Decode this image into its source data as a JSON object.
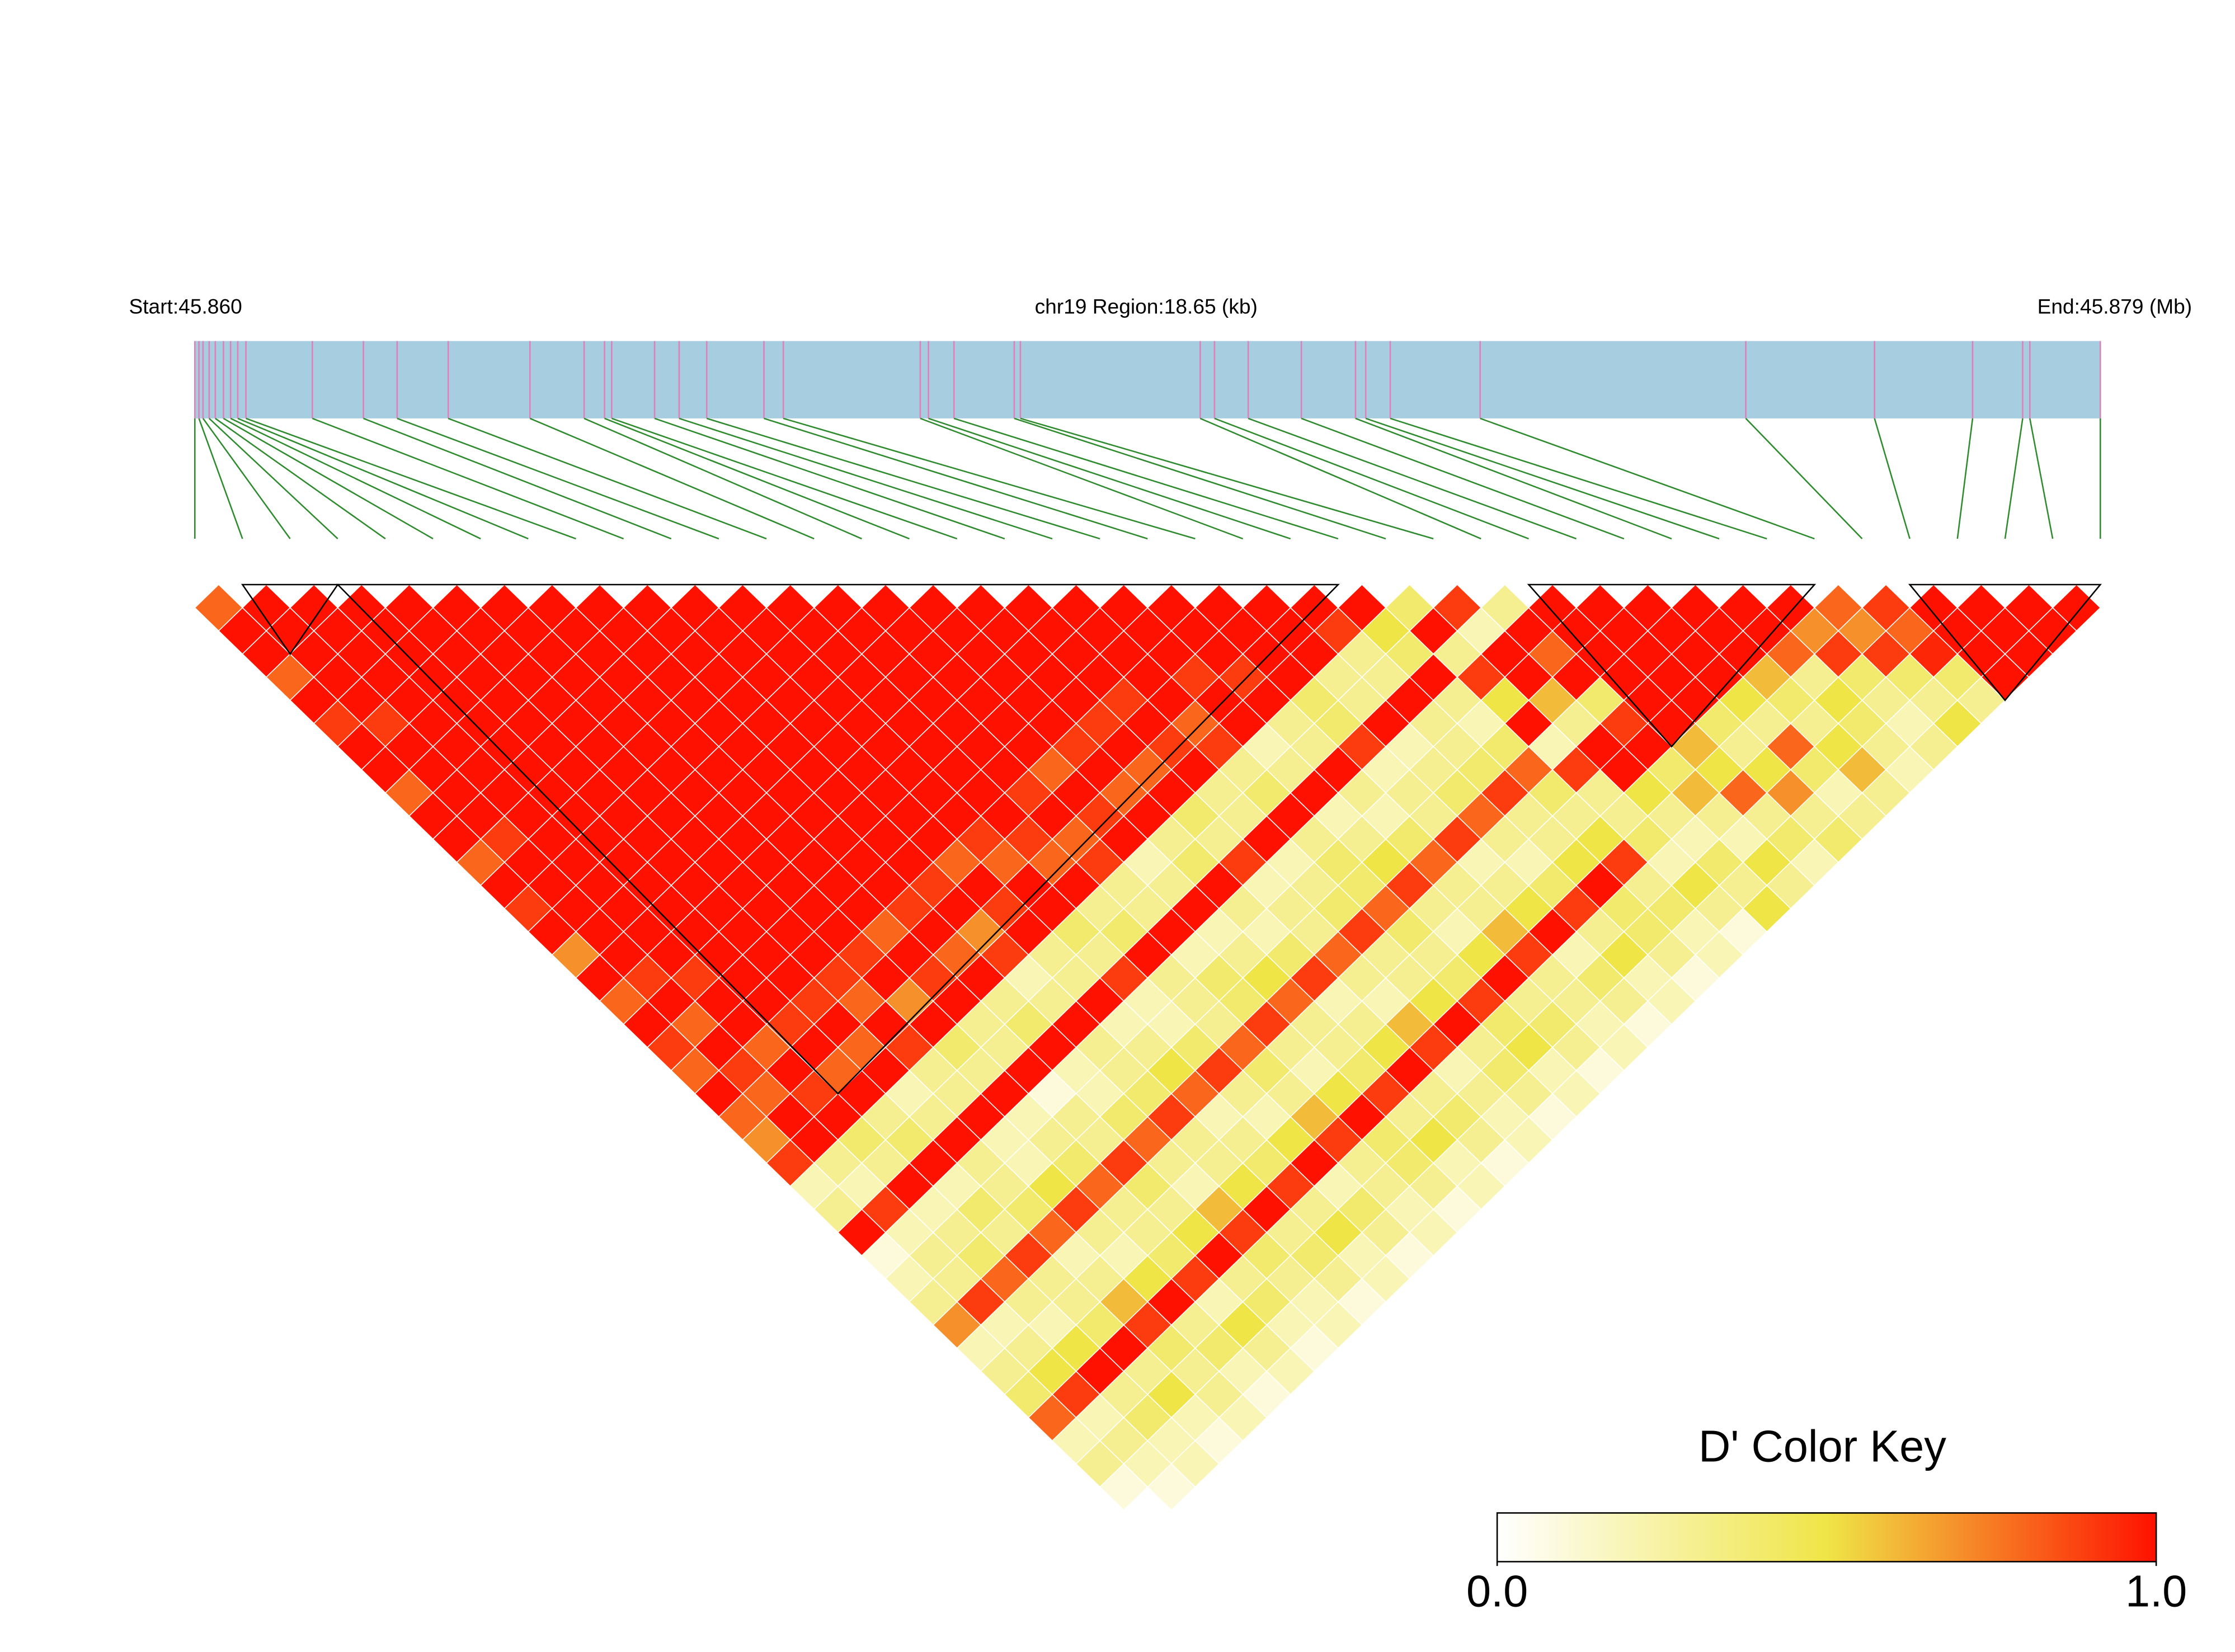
{
  "chart_data": {
    "type": "ld_heatmap",
    "start_label": "Start:45.860",
    "region_label": "chr19 Region:18.65 (kb)",
    "end_label": "End:45.879 (Mb)",
    "xlim": [
      0,
      18.65
    ],
    "positions": [
      0.0,
      0.04,
      0.08,
      0.14,
      0.2,
      0.28,
      0.35,
      0.42,
      0.5,
      1.15,
      1.65,
      1.98,
      2.48,
      3.28,
      3.81,
      4.01,
      4.08,
      4.5,
      4.74,
      5.01,
      5.57,
      5.76,
      7.1,
      7.18,
      7.43,
      8.02,
      8.08,
      9.84,
      9.98,
      10.31,
      10.83,
      11.36,
      11.46,
      11.7,
      12.58,
      15.18,
      16.44,
      17.4,
      17.89,
      17.96,
      18.65
    ],
    "dprime": [
      [
        0.8,
        1,
        1,
        0.8,
        1,
        0.9,
        1,
        1,
        0.8,
        1,
        1,
        0.8,
        1,
        0.9,
        1,
        0.7,
        1,
        0.8,
        1,
        0.9,
        0.8,
        1,
        0.8,
        0.7,
        0.9,
        0.2,
        0.3,
        1,
        0.1,
        0.2,
        0.3,
        0.7,
        0.2,
        0.3,
        0.4,
        0.8,
        0.2,
        0.3,
        0.1,
        0
      ],
      [
        1,
        1,
        1,
        1,
        1,
        0.9,
        1,
        1,
        1,
        1,
        0.9,
        1,
        1,
        1,
        1,
        1,
        0.9,
        1,
        0.8,
        1,
        0.9,
        0.8,
        1,
        1,
        0.3,
        0.2,
        0.9,
        0.2,
        0.3,
        0.3,
        0.9,
        0.2,
        0.3,
        0.5,
        0.9,
        0.2,
        0.3,
        0.2,
        0.1
      ],
      [
        1,
        1,
        1,
        1,
        1,
        1,
        1,
        1,
        1,
        1,
        1,
        1,
        1,
        1,
        1,
        1,
        0.9,
        1,
        1,
        0.8,
        1,
        0.9,
        1,
        0.4,
        0.3,
        1,
        0.2,
        0.3,
        0.4,
        0.8,
        0.3,
        0.2,
        0.5,
        1,
        0.3,
        0.4,
        0.2,
        0.2
      ],
      [
        1,
        1,
        1,
        1,
        1,
        1,
        1,
        1,
        1,
        1,
        1,
        1,
        1,
        1,
        1,
        1,
        1,
        1,
        0.9,
        1,
        0.8,
        1,
        0.3,
        0.4,
        1,
        0.2,
        0.4,
        0.3,
        0.9,
        0.3,
        0.3,
        0.4,
        1,
        0.3,
        0.5,
        0.2,
        0.1
      ],
      [
        1,
        1,
        1,
        1,
        1,
        1,
        1,
        1,
        1,
        1,
        1,
        1,
        1,
        1,
        1,
        1,
        1,
        0.9,
        1,
        0.8,
        1,
        0.2,
        0.3,
        1,
        0.3,
        0.3,
        0.4,
        0.8,
        0.2,
        0.3,
        0.6,
        0.9,
        0.4,
        0.3,
        0.3,
        0.2
      ],
      [
        1,
        1,
        1,
        1,
        1,
        1,
        1,
        1,
        1,
        1,
        1,
        1,
        1,
        1,
        1,
        1,
        0.9,
        0.8,
        1,
        0.9,
        0.3,
        0.3,
        1,
        0.2,
        0.2,
        0.5,
        0.9,
        0.3,
        0.2,
        0.5,
        1,
        0.3,
        0.4,
        0.2,
        0.1
      ],
      [
        1,
        1,
        1,
        1,
        1,
        1,
        1,
        1,
        1,
        1,
        1,
        1,
        1,
        1,
        1,
        0.9,
        1,
        0.7,
        1,
        0.4,
        0.3,
        1,
        0.2,
        0.3,
        0.4,
        0.8,
        0.3,
        0.3,
        0.4,
        0.9,
        0.2,
        0.5,
        0.3,
        0.2
      ],
      [
        1,
        1,
        1,
        1,
        1,
        1,
        1,
        1,
        1,
        1,
        1,
        1,
        1,
        1,
        0.8,
        1,
        0.9,
        1,
        0.3,
        0.3,
        1,
        0.1,
        0.3,
        0.3,
        0.9,
        0.4,
        0.3,
        0.5,
        1,
        0.3,
        0.4,
        0.2,
        0.1
      ],
      [
        1,
        1,
        1,
        1,
        1,
        1,
        1,
        1,
        1,
        1,
        1,
        1,
        1,
        0.9,
        1,
        0.8,
        1,
        0.3,
        0.4,
        1,
        0.2,
        0.2,
        0.4,
        0.8,
        0.3,
        0.2,
        0.6,
        0.9,
        0.4,
        0.3,
        0.2,
        0.2
      ],
      [
        1,
        1,
        1,
        1,
        1,
        1,
        1,
        1,
        1,
        1,
        1,
        1,
        0.9,
        1,
        0.7,
        0.9,
        0.2,
        0.3,
        1,
        0.3,
        0.3,
        0.4,
        0.9,
        0.3,
        0.3,
        0.5,
        1,
        0.3,
        0.4,
        0.3,
        0.1
      ],
      [
        1,
        1,
        1,
        1,
        1,
        1,
        1,
        1,
        1,
        1,
        1,
        0.8,
        1,
        0.9,
        1,
        0.3,
        0.3,
        1,
        0.2,
        0.3,
        0.5,
        0.8,
        0.2,
        0.3,
        0.4,
        0.9,
        0.3,
        0.5,
        0.2,
        0.2
      ],
      [
        1,
        1,
        1,
        1,
        1,
        1,
        1,
        1,
        1,
        1,
        0.9,
        0.8,
        1,
        1,
        0.4,
        0.3,
        0.9,
        0.2,
        0.2,
        0.4,
        0.9,
        0.3,
        0.2,
        0.5,
        1,
        0.2,
        0.4,
        0.3,
        0.1
      ],
      [
        1,
        1,
        1,
        1,
        1,
        1,
        1,
        1,
        1,
        1,
        0.9,
        0.8,
        1,
        0.3,
        0.4,
        1,
        0.3,
        0.3,
        0.3,
        0.8,
        0.4,
        0.3,
        0.6,
        0.9,
        0.3,
        0.3,
        0.2,
        0.2
      ],
      [
        1,
        1,
        1,
        1,
        1,
        1,
        1,
        1,
        0.9,
        1,
        0.8,
        0.9,
        0.3,
        0.3,
        1,
        0.2,
        0.4,
        0.4,
        0.9,
        0.3,
        0.2,
        0.5,
        1,
        0.4,
        0.4,
        0.3,
        0.1
      ],
      [
        1,
        1,
        1,
        1,
        1,
        1,
        1,
        0.8,
        1,
        0.9,
        1,
        0.2,
        0.3,
        1,
        0.2,
        0.3,
        0.5,
        0.8,
        0.3,
        0.3,
        0.4,
        0.9,
        0.3,
        0.5,
        0.2,
        0.2
      ],
      [
        1,
        1,
        1,
        1,
        1,
        1,
        0.9,
        1,
        0.8,
        1,
        0.3,
        0.4,
        1,
        0.3,
        0.2,
        0.4,
        0.9,
        0.2,
        0.3,
        0.5,
        1,
        0.3,
        0.4,
        0.3,
        0.1
      ],
      [
        1,
        1,
        1,
        1,
        1,
        0.9,
        1,
        0.8,
        1,
        0.4,
        0.3,
        0.9,
        0.2,
        0.3,
        0.3,
        0.8,
        0.3,
        0.2,
        0.6,
        0.9,
        0.2,
        0.3,
        0.2,
        0.2
      ],
      [
        1,
        1,
        1,
        1,
        0.9,
        1,
        0.9,
        1,
        0.3,
        0.3,
        1,
        0.2,
        0.3,
        0.4,
        0.9,
        0.3,
        0.3,
        0.5,
        1,
        0.3,
        0.4,
        0.3,
        0.1
      ],
      [
        1,
        1,
        1,
        1,
        1,
        0.8,
        0.9,
        0.3,
        0.4,
        1,
        0.3,
        0.4,
        0.4,
        0.8,
        0.4,
        0.3,
        0.4,
        0.9,
        0.4,
        0.5,
        0.2,
        0.2
      ],
      [
        1,
        1,
        1,
        0.9,
        1,
        1,
        0.2,
        0.3,
        1,
        0.2,
        0.3,
        0.5,
        0.9,
        0.3,
        0.2,
        0.5,
        1,
        0.3,
        0.4,
        0.3,
        0.1
      ],
      [
        1,
        1,
        1,
        0.9,
        1,
        0.3,
        0.3,
        1,
        0.3,
        0.2,
        0.4,
        0.8,
        0.3,
        0.3,
        0.6,
        0.9,
        0.3,
        0.3,
        0.2,
        0.2
      ],
      [
        1,
        1,
        1,
        1,
        0.4,
        0.4,
        0.9,
        0.2,
        0.3,
        0.3,
        0.9,
        0.2,
        0.3,
        0.5,
        1,
        0.2,
        0.4,
        0.3,
        0.1
      ],
      [
        1,
        1,
        1,
        0.3,
        0.3,
        1,
        0.2,
        0.3,
        0.4,
        0.8,
        0.3,
        0.2,
        0.4,
        0.9,
        0.3,
        0.5,
        0.2,
        0.2
      ],
      [
        1,
        0.9,
        0.3,
        0.3,
        1,
        0.3,
        0.3,
        0.4,
        0.9,
        0.3,
        0.3,
        0.5,
        1,
        0.4,
        0.4,
        0.3,
        0.1
      ],
      [
        1,
        0.5,
        0.4,
        1,
        0.3,
        0.2,
        0.4,
        0.8,
        0.4,
        0.3,
        0.5,
        0.9,
        0.3,
        0.4,
        0.2,
        0.2
      ],
      [
        0.4,
        1,
        0.3,
        0.9,
        0.5,
        1,
        0.2,
        0.9,
        0.3,
        0.3,
        0.4,
        0.2,
        0.5,
        0.3,
        0.1
      ],
      [
        0.9,
        0.2,
        1,
        1,
        0.6,
        0.3,
        1,
        1,
        0.5,
        0.3,
        0.2,
        0.4,
        0.3,
        0.5
      ],
      [
        0.3,
        1,
        0.8,
        1,
        0.4,
        0.9,
        1,
        0.4,
        0.6,
        0.3,
        0.2,
        0.5,
        0.3
      ],
      [
        1,
        1,
        1,
        1,
        1,
        1,
        0.6,
        0.5,
        0.8,
        0.3,
        0.4,
        0.2
      ],
      [
        1,
        1,
        1,
        1,
        1,
        0.4,
        0.3,
        0.5,
        0.7,
        0.3,
        0.4
      ],
      [
        1,
        1,
        1,
        1,
        0.5,
        0.3,
        0.8,
        0.4,
        0.2,
        0.3
      ],
      [
        1,
        1,
        1,
        0.6,
        0.4,
        0.3,
        0.5,
        0.6,
        0.3
      ],
      [
        1,
        1,
        0.8,
        0.3,
        0.5,
        0.4,
        0.3,
        0.2
      ],
      [
        1,
        0.7,
        0.9,
        0.4,
        0.3,
        0.2,
        0.3
      ],
      [
        0.8,
        0.7,
        0.9,
        0.4,
        0.3,
        0.5
      ],
      [
        0.9,
        0.8,
        0.95,
        0.4,
        0.3
      ],
      [
        1,
        1,
        1,
        1
      ],
      [
        1,
        1,
        1
      ],
      [
        1,
        1
      ],
      [
        1
      ]
    ],
    "blocks": [
      [
        1,
        3
      ],
      [
        3,
        24
      ],
      [
        28,
        34
      ],
      [
        36,
        40
      ]
    ],
    "colors": [
      "#ffffff",
      "#efe547",
      "#ff1100"
    ],
    "legend_title": "D' Color Key",
    "legend_ticks": [
      {
        "value": 0,
        "label": "0.0"
      },
      {
        "value": 1,
        "label": "1.0"
      }
    ]
  }
}
